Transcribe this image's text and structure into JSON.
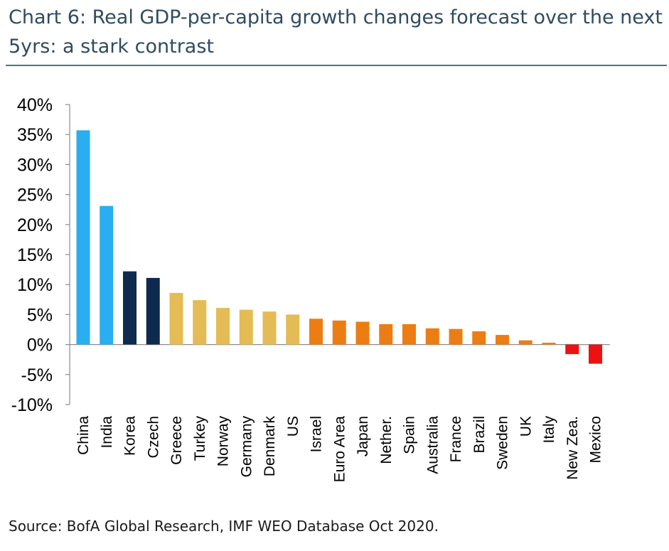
{
  "title": "Chart 6: Real GDP-per-capita growth changes forecast over the next 5yrs: a stark contrast",
  "source": "Source: BofA Global Research, IMF WEO Database Oct 2020.",
  "colors": {
    "title": "#2f4b60",
    "rule": "#4f7387",
    "light_blue": "#29aeef",
    "dark_navy": "#0e2a4e",
    "gold": "#e4bb55",
    "orange": "#ec7d14",
    "red": "#ee1111"
  },
  "chart_data": {
    "type": "bar",
    "categories": [
      "China",
      "India",
      "Korea",
      "Czech",
      "Greece",
      "Turkey",
      "Norway",
      "Germany",
      "Denmark",
      "US",
      "Israel",
      "Euro Area",
      "Japan",
      "Nether.",
      "Spain",
      "Australia",
      "France",
      "Brazil",
      "Sweden",
      "UK",
      "Italy",
      "New Zea.",
      "Mexico"
    ],
    "values": [
      35.7,
      23.1,
      12.2,
      11.1,
      8.6,
      7.4,
      6.1,
      5.8,
      5.5,
      5.0,
      4.3,
      4.0,
      3.8,
      3.4,
      3.4,
      2.7,
      2.6,
      2.2,
      1.6,
      0.7,
      0.3,
      -1.6,
      -3.2
    ],
    "bar_colors": [
      "light_blue",
      "light_blue",
      "dark_navy",
      "dark_navy",
      "gold",
      "gold",
      "gold",
      "gold",
      "gold",
      "gold",
      "orange",
      "orange",
      "orange",
      "orange",
      "orange",
      "orange",
      "orange",
      "orange",
      "orange",
      "orange",
      "orange",
      "red",
      "red"
    ],
    "y_ticks": [
      "40%",
      "35%",
      "30%",
      "25%",
      "20%",
      "15%",
      "10%",
      "5%",
      "0%",
      "-5%",
      "-10%"
    ],
    "ylim": [
      -10,
      40
    ],
    "grid": false,
    "legend": "none"
  }
}
